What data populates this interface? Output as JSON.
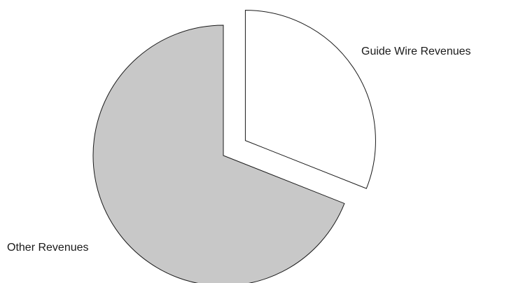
{
  "chart_data": {
    "type": "pie",
    "title": "",
    "slices": [
      {
        "label": "Guide Wire Revenues",
        "value": 31,
        "color": "#ffffff",
        "exploded": true
      },
      {
        "label": "Other Revenues",
        "value": 69,
        "color": "#c8c8c8",
        "exploded": false
      }
    ],
    "start_angle_deg": 0,
    "direction": "clockwise",
    "legend": "none"
  }
}
